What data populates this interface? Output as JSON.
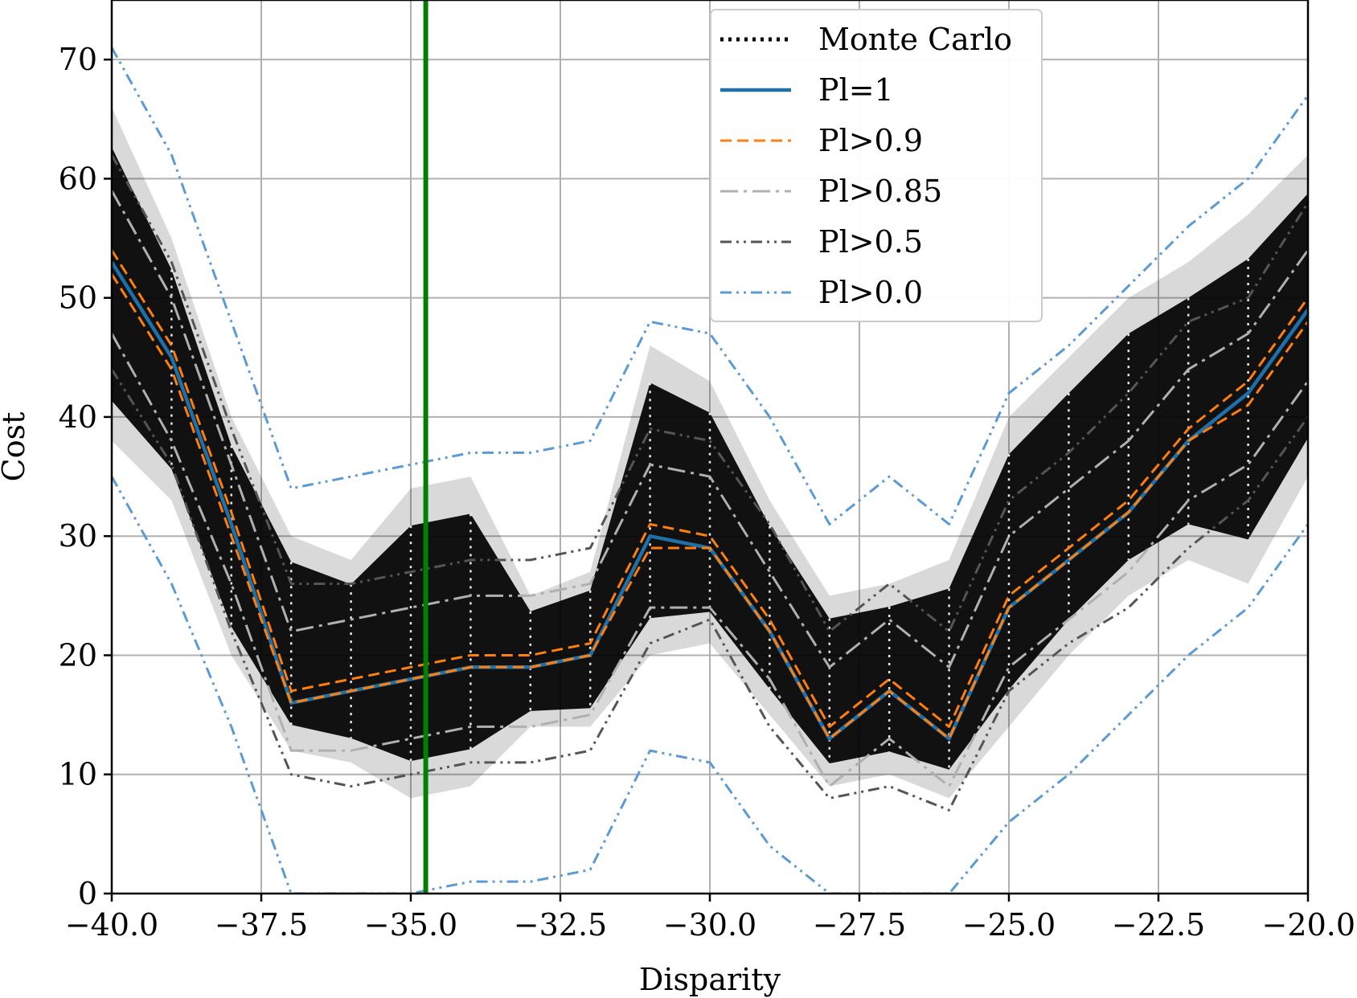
{
  "chart_data": {
    "type": "line",
    "title": "",
    "xlabel": "Disparity",
    "ylabel": "Cost",
    "xlim": [
      -40,
      -20
    ],
    "ylim": [
      0,
      75
    ],
    "grid": true,
    "legend_position": "top-center",
    "x_ticks": [
      -40.0,
      -37.5,
      -35.0,
      -32.5,
      -30.0,
      -27.5,
      -25.0,
      -22.5,
      -20.0
    ],
    "x_tick_labels": [
      "−40.0",
      "−37.5",
      "−35.0",
      "−32.5",
      "−30.0",
      "−27.5",
      "−25.0",
      "−22.5",
      "−20.0"
    ],
    "y_ticks": [
      0,
      10,
      20,
      30,
      40,
      50,
      60,
      70
    ],
    "y_tick_labels": [
      "0",
      "10",
      "20",
      "30",
      "40",
      "50",
      "60",
      "70"
    ],
    "x": [
      -40,
      -39,
      -38,
      -37,
      -36,
      -35,
      -34,
      -33,
      -32,
      -31,
      -30,
      -29,
      -28,
      -27,
      -26,
      -25,
      -24,
      -23,
      -22,
      -21,
      -20
    ],
    "vertical_marker": {
      "x": -34.75,
      "color": "#008000"
    },
    "monte_carlo": {
      "name": "Monte Carlo",
      "color": "#000000",
      "upper": [
        66,
        55,
        40,
        30,
        28,
        34,
        35,
        25,
        27,
        46,
        43,
        33,
        25,
        26,
        28,
        40,
        45,
        50,
        53,
        57,
        62
      ],
      "lower": [
        38,
        33,
        20,
        12,
        11,
        8,
        9,
        14,
        14,
        20,
        21,
        15,
        9,
        10,
        8,
        14,
        20,
        25,
        28,
        26,
        35
      ]
    },
    "series": [
      {
        "name": "Pl=1",
        "color": "#1f6fa8",
        "style": "solid",
        "values": [
          53,
          45,
          31,
          16,
          17,
          18,
          19,
          19,
          20,
          30,
          29,
          22,
          13,
          17,
          13,
          24,
          28,
          32,
          38,
          42,
          49
        ]
      },
      {
        "name": "Pl>0.9",
        "color": "#ff7f0e",
        "style": "dashed",
        "values": [
          54,
          46,
          32,
          17,
          18,
          19,
          20,
          20,
          21,
          31,
          30,
          23,
          14,
          18,
          14,
          25,
          29,
          33,
          39,
          43,
          50
        ]
      },
      {
        "name": "Pl>0.9",
        "color": "#ff7f0e",
        "style": "dashed",
        "legend": false,
        "values": [
          52,
          44,
          30,
          16,
          17,
          18,
          19,
          19,
          20,
          29,
          29,
          22,
          13,
          17,
          13,
          24,
          28,
          32,
          38,
          41,
          48
        ]
      },
      {
        "name": "Pl>0.85",
        "color": "#b0b0b0",
        "style": "dashdot",
        "values": [
          59,
          50,
          36,
          22,
          23,
          24,
          25,
          25,
          26,
          36,
          35,
          27,
          19,
          23,
          19,
          30,
          34,
          38,
          44,
          47,
          54
        ]
      },
      {
        "name": "Pl>0.85",
        "color": "#b0b0b0",
        "style": "dashdot",
        "legend": false,
        "values": [
          47,
          38,
          26,
          12,
          12,
          13,
          14,
          14,
          15,
          24,
          24,
          18,
          9,
          13,
          9,
          19,
          23,
          27,
          33,
          36,
          43
        ]
      },
      {
        "name": "Pl>0.5",
        "color": "#555555",
        "style": "dashdotdot",
        "values": [
          62,
          53,
          39,
          26,
          26,
          27,
          28,
          28,
          29,
          39,
          38,
          31,
          22,
          26,
          22,
          33,
          37,
          42,
          48,
          50,
          58
        ]
      },
      {
        "name": "Pl>0.5",
        "color": "#555555",
        "style": "dashdotdot",
        "legend": false,
        "values": [
          44,
          36,
          22,
          10,
          9,
          10,
          11,
          11,
          12,
          21,
          23,
          14,
          8,
          9,
          7,
          17,
          21,
          24,
          29,
          33,
          40
        ]
      },
      {
        "name": "Pl>0.0",
        "color": "#5b9bd5",
        "style": "dashdotdot",
        "values": [
          71,
          62,
          48,
          34,
          35,
          36,
          37,
          37,
          38,
          48,
          47,
          40,
          31,
          35,
          31,
          42,
          46,
          51,
          56,
          60,
          67
        ]
      },
      {
        "name": "Pl>0.0",
        "color": "#5b9bd5",
        "style": "dashdotdot",
        "legend": false,
        "values": [
          35,
          26,
          14,
          0,
          0,
          0,
          1,
          1,
          2,
          12,
          11,
          4,
          0,
          0,
          0,
          6,
          10,
          15,
          20,
          24,
          31
        ]
      }
    ],
    "legend": [
      {
        "label": "Monte Carlo",
        "color": "#000000",
        "style": "dotted"
      },
      {
        "label": "Pl=1",
        "color": "#1f6fa8",
        "style": "solid"
      },
      {
        "label": "Pl>0.9",
        "color": "#ff7f0e",
        "style": "dashed"
      },
      {
        "label": "Pl>0.85",
        "color": "#b0b0b0",
        "style": "dashdot"
      },
      {
        "label": "Pl>0.5",
        "color": "#555555",
        "style": "dashdotdot"
      },
      {
        "label": "Pl>0.0",
        "color": "#5b9bd5",
        "style": "dashdotdot"
      }
    ]
  }
}
